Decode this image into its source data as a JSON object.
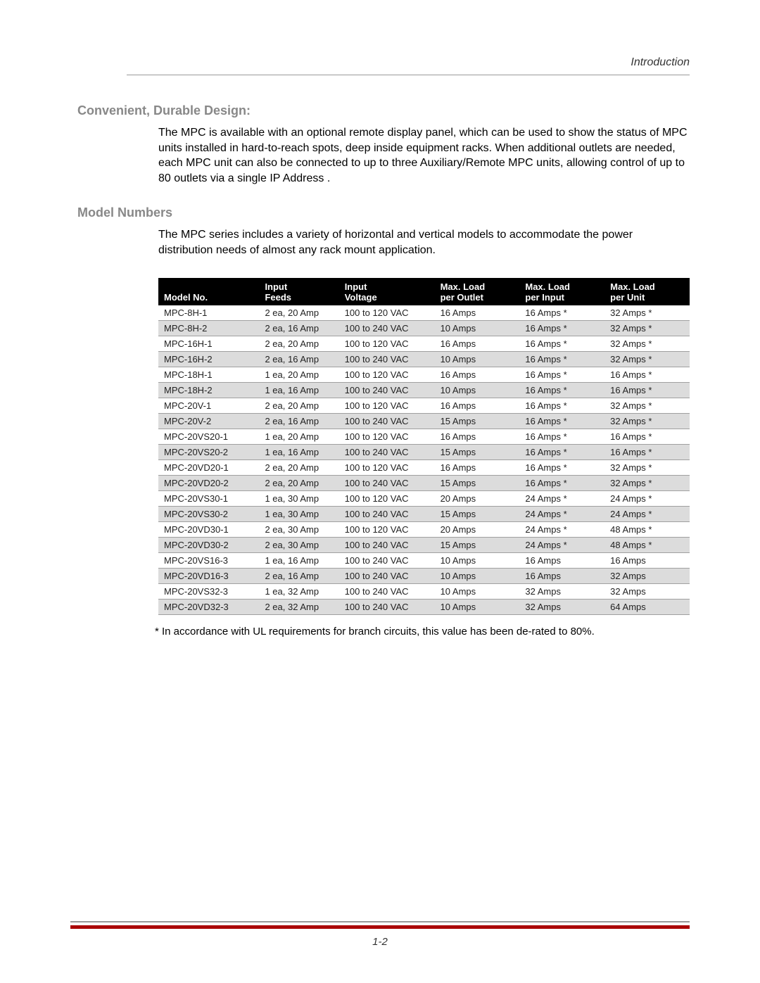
{
  "header": {
    "section_label": "Introduction"
  },
  "sections": {
    "design": {
      "title": "Convenient, Durable Design:",
      "body": "The MPC is available with an optional remote display panel, which can be used to show the status of MPC units installed in hard-to-reach spots, deep inside equipment racks. When additional outlets are needed, each MPC unit can also be connected to up to three Auxiliary/Remote MPC units, allowing control of up to 80 outlets via a single IP Address ."
    },
    "models": {
      "title": "Model Numbers",
      "body": "The MPC series includes a variety of horizontal and vertical models to accommodate the power distribution needs of almost any rack mount application."
    }
  },
  "table": {
    "headers": {
      "model": "Model No.",
      "feeds_l1": "Input",
      "feeds_l2": "Feeds",
      "voltage_l1": "Input",
      "voltage_l2": "Voltage",
      "outlet_l1": "Max. Load",
      "outlet_l2": "per Outlet",
      "input_l1": "Max. Load",
      "input_l2": "per Input",
      "unit_l1": "Max. Load",
      "unit_l2": "per Unit"
    },
    "rows": [
      {
        "model": "MPC-8H-1",
        "feeds": "2 ea, 20 Amp",
        "voltage": "100 to 120 VAC",
        "outlet": "16 Amps",
        "input": "16 Amps *",
        "unit": "32 Amps *"
      },
      {
        "model": "MPC-8H-2",
        "feeds": "2 ea, 16 Amp",
        "voltage": "100 to 240 VAC",
        "outlet": "10 Amps",
        "input": "16 Amps *",
        "unit": "32 Amps *"
      },
      {
        "model": "MPC-16H-1",
        "feeds": "2 ea, 20 Amp",
        "voltage": "100 to 120 VAC",
        "outlet": "16 Amps",
        "input": "16 Amps *",
        "unit": "32 Amps *"
      },
      {
        "model": "MPC-16H-2",
        "feeds": "2 ea, 16 Amp",
        "voltage": "100 to 240 VAC",
        "outlet": "10 Amps",
        "input": "16 Amps *",
        "unit": "32 Amps *"
      },
      {
        "model": "MPC-18H-1",
        "feeds": "1 ea, 20 Amp",
        "voltage": "100 to 120 VAC",
        "outlet": "16 Amps",
        "input": "16 Amps *",
        "unit": "16 Amps *"
      },
      {
        "model": "MPC-18H-2",
        "feeds": "1 ea, 16 Amp",
        "voltage": "100 to 240 VAC",
        "outlet": "10 Amps",
        "input": "16 Amps *",
        "unit": "16 Amps *"
      },
      {
        "model": "MPC-20V-1",
        "feeds": "2 ea, 20 Amp",
        "voltage": "100 to 120 VAC",
        "outlet": "16 Amps",
        "input": "16 Amps *",
        "unit": "32 Amps *"
      },
      {
        "model": "MPC-20V-2",
        "feeds": "2 ea, 16 Amp",
        "voltage": "100 to 240 VAC",
        "outlet": "15 Amps",
        "input": "16 Amps *",
        "unit": "32 Amps *"
      },
      {
        "model": "MPC-20VS20-1",
        "feeds": "1 ea, 20 Amp",
        "voltage": "100 to 120 VAC",
        "outlet": "16 Amps",
        "input": "16 Amps *",
        "unit": "16 Amps *"
      },
      {
        "model": "MPC-20VS20-2",
        "feeds": "1 ea, 16 Amp",
        "voltage": "100 to 240 VAC",
        "outlet": "15 Amps",
        "input": "16 Amps *",
        "unit": "16 Amps *"
      },
      {
        "model": "MPC-20VD20-1",
        "feeds": "2 ea, 20 Amp",
        "voltage": "100 to 120 VAC",
        "outlet": "16 Amps",
        "input": "16 Amps *",
        "unit": "32 Amps *"
      },
      {
        "model": "MPC-20VD20-2",
        "feeds": "2 ea, 20 Amp",
        "voltage": "100 to 240 VAC",
        "outlet": "15 Amps",
        "input": "16 Amps *",
        "unit": "32 Amps *"
      },
      {
        "model": "MPC-20VS30-1",
        "feeds": "1 ea, 30 Amp",
        "voltage": "100 to 120 VAC",
        "outlet": "20 Amps",
        "input": "24 Amps *",
        "unit": "24 Amps *"
      },
      {
        "model": "MPC-20VS30-2",
        "feeds": "1 ea, 30 Amp",
        "voltage": "100 to 240 VAC",
        "outlet": "15 Amps",
        "input": "24 Amps *",
        "unit": "24 Amps *"
      },
      {
        "model": "MPC-20VD30-1",
        "feeds": "2 ea, 30 Amp",
        "voltage": "100 to 120 VAC",
        "outlet": "20 Amps",
        "input": "24 Amps *",
        "unit": "48 Amps *"
      },
      {
        "model": "MPC-20VD30-2",
        "feeds": "2 ea, 30 Amp",
        "voltage": "100 to 240 VAC",
        "outlet": "15 Amps",
        "input": "24 Amps *",
        "unit": "48 Amps *"
      },
      {
        "model": "MPC-20VS16-3",
        "feeds": "1 ea, 16 Amp",
        "voltage": "100 to 240 VAC",
        "outlet": "10 Amps",
        "input": "16 Amps",
        "unit": "16 Amps"
      },
      {
        "model": "MPC-20VD16-3",
        "feeds": "2 ea, 16 Amp",
        "voltage": "100 to 240 VAC",
        "outlet": "10 Amps",
        "input": "16 Amps",
        "unit": "32 Amps"
      },
      {
        "model": "MPC-20VS32-3",
        "feeds": "1 ea, 32 Amp",
        "voltage": "100 to 240 VAC",
        "outlet": "10 Amps",
        "input": "32 Amps",
        "unit": "32 Amps"
      },
      {
        "model": "MPC-20VD32-3",
        "feeds": "2 ea, 32 Amp",
        "voltage": "100 to 240 VAC",
        "outlet": "10 Amps",
        "input": "32 Amps",
        "unit": "64 Amps"
      }
    ]
  },
  "footnote": "*  In accordance with UL requirements for branch circuits, this value has been de-rated to 80%.",
  "footer": {
    "page": "1-2"
  },
  "styling": {
    "header_bg": "#000000",
    "header_fg": "#ffffff",
    "row_alt_bg": "#dcdcdc",
    "border_color": "#a0a0a0",
    "red_line": "#aa0000",
    "grey_line": "#999999",
    "title_color": "#888888",
    "body_color": "#000000",
    "section_label_color": "#333333"
  }
}
